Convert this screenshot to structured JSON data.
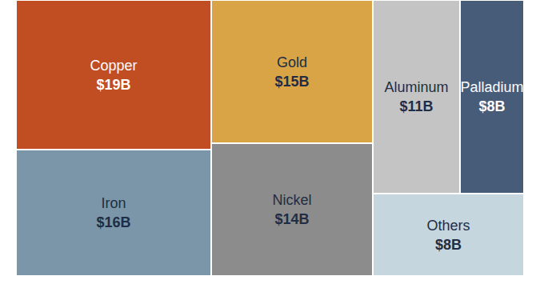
{
  "chart_data": {
    "type": "treemap",
    "categories": [
      "Copper",
      "Iron",
      "Gold",
      "Nickel",
      "Aluminum",
      "Palladium",
      "Others"
    ],
    "values": [
      19,
      16,
      15,
      14,
      11,
      8,
      8
    ],
    "value_labels": [
      "$19B",
      "$16B",
      "$15B",
      "$14B",
      "$11B",
      "$8B",
      "$8B"
    ],
    "colors": [
      "#c04e22",
      "#7a96a8",
      "#d9a445",
      "#8c8c8c",
      "#c4c4c4",
      "#465c79",
      "#c6d6df"
    ],
    "data_labels": true
  }
}
